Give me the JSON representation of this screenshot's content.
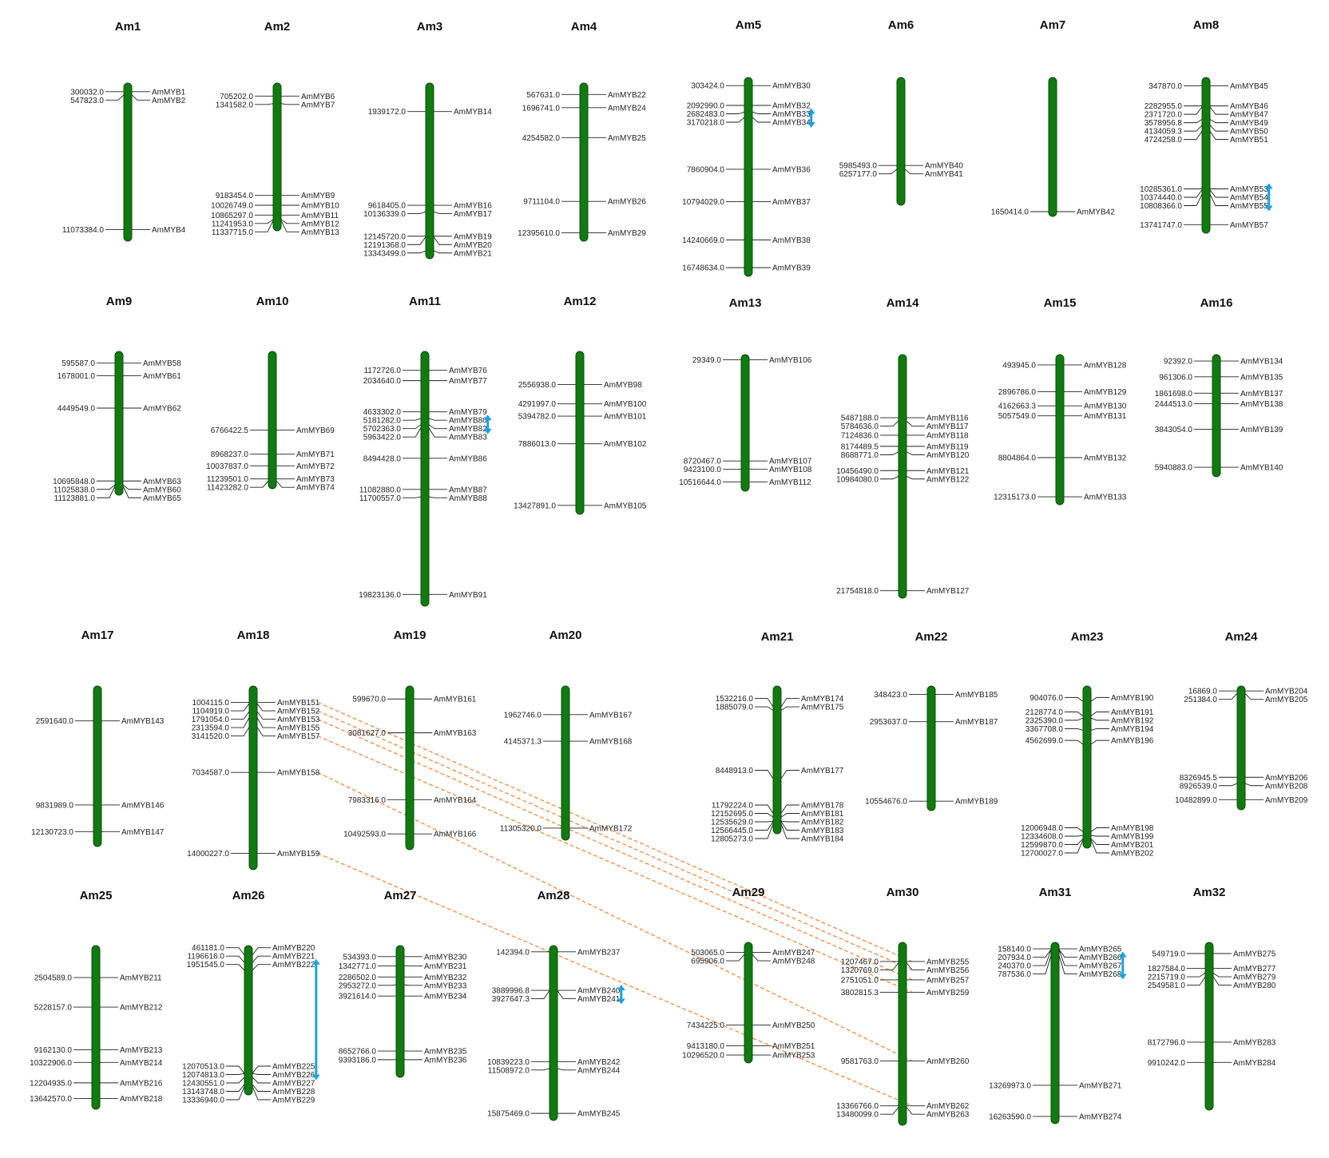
{
  "colors": {
    "chromosome": "#117a11",
    "segmental_link": "#f0883c",
    "tandem_marker": "#1aa3e0",
    "text": "#222222"
  },
  "chromosomes": [
    {
      "name": "Am1",
      "genes": [
        {
          "pos": "300032.0",
          "gene": "AmMYB1"
        },
        {
          "pos": "547823.0",
          "gene": "AmMYB2"
        },
        {
          "pos": "11073384.0",
          "gene": "AmMYB4"
        }
      ]
    },
    {
      "name": "Am2",
      "genes": [
        {
          "pos": "705202.0",
          "gene": "AmMYB6"
        },
        {
          "pos": "1341582.0",
          "gene": "AmMYB7"
        },
        {
          "pos": "9183454.0",
          "gene": "AmMYB9"
        },
        {
          "pos": "10026749.0",
          "gene": "AmMYB10"
        },
        {
          "pos": "10865297.0",
          "gene": "AmMYB11"
        },
        {
          "pos": "11241953.0",
          "gene": "AmMYB12"
        },
        {
          "pos": "11337715.0",
          "gene": "AmMYB13"
        }
      ]
    },
    {
      "name": "Am3",
      "genes": [
        {
          "pos": "1939172.0",
          "gene": "AmMYB14"
        },
        {
          "pos": "9618405.0",
          "gene": "AmMYB16"
        },
        {
          "pos": "10136339.0",
          "gene": "AmMYB17"
        },
        {
          "pos": "12145720.0",
          "gene": "AmMYB19"
        },
        {
          "pos": "12191368.0",
          "gene": "AmMYB20"
        },
        {
          "pos": "13343499.0",
          "gene": "AmMYB21"
        }
      ]
    },
    {
      "name": "Am4",
      "genes": [
        {
          "pos": "567631.0",
          "gene": "AmMYB22"
        },
        {
          "pos": "1696741.0",
          "gene": "AmMYB24"
        },
        {
          "pos": "4254582.0",
          "gene": "AmMYB25"
        },
        {
          "pos": "9711104.0",
          "gene": "AmMYB26"
        },
        {
          "pos": "12395610.0",
          "gene": "AmMYB29"
        }
      ]
    },
    {
      "name": "Am5",
      "genes": [
        {
          "pos": "303424.0",
          "gene": "AmMYB30"
        },
        {
          "pos": "2092990.0",
          "gene": "AmMYB32"
        },
        {
          "pos": "2682483.0",
          "gene": "AmMYB33"
        },
        {
          "pos": "3170218.0",
          "gene": "AmMYB34"
        },
        {
          "pos": "7860904.0",
          "gene": "AmMYB36"
        },
        {
          "pos": "10794029.0",
          "gene": "AmMYB37"
        },
        {
          "pos": "14240669.0",
          "gene": "AmMYB38"
        },
        {
          "pos": "16748634.0",
          "gene": "AmMYB39"
        }
      ]
    },
    {
      "name": "Am6",
      "genes": [
        {
          "pos": "5985493.0",
          "gene": "AmMYB40"
        },
        {
          "pos": "6257177.0",
          "gene": "AmMYB41"
        }
      ]
    },
    {
      "name": "Am7",
      "genes": [
        {
          "pos": "1650414.0",
          "gene": "AmMYB42"
        }
      ]
    },
    {
      "name": "Am8",
      "genes": [
        {
          "pos": "347870.0",
          "gene": "AmMYB45"
        },
        {
          "pos": "2282955.0",
          "gene": "AmMYB46"
        },
        {
          "pos": "2371720.0",
          "gene": "AmMYB47"
        },
        {
          "pos": "3578956.8",
          "gene": "AmMYB49"
        },
        {
          "pos": "4134059.3",
          "gene": "AmMYB50"
        },
        {
          "pos": "4724258.0",
          "gene": "AmMYB51"
        },
        {
          "pos": "10285361.0",
          "gene": "AmMYB53"
        },
        {
          "pos": "10374440.0",
          "gene": "AmMYB54"
        },
        {
          "pos": "10808366.0",
          "gene": "AmMYB55"
        },
        {
          "pos": "13741747.0",
          "gene": "AmMYB57"
        }
      ]
    },
    {
      "name": "Am9",
      "genes": [
        {
          "pos": "595587.0",
          "gene": "AmMYB58"
        },
        {
          "pos": "1678001.0",
          "gene": "AmMYB61"
        },
        {
          "pos": "4449549.0",
          "gene": "AmMYB62"
        },
        {
          "pos": "10695848.0",
          "gene": "AmMYB63"
        },
        {
          "pos": "11025838.0",
          "gene": "AmMYB60"
        },
        {
          "pos": "11123881.0",
          "gene": "AmMYB65"
        }
      ]
    },
    {
      "name": "Am10",
      "genes": [
        {
          "pos": "6766422.5",
          "gene": "AmMYB69"
        },
        {
          "pos": "8968237.0",
          "gene": "AmMYB71"
        },
        {
          "pos": "10037837.0",
          "gene": "AmMYB72"
        },
        {
          "pos": "11239501.0",
          "gene": "AmMYB73"
        },
        {
          "pos": "11423282.0",
          "gene": "AmMYB74"
        }
      ]
    },
    {
      "name": "Am11",
      "genes": [
        {
          "pos": "1172726.0",
          "gene": "AmMYB76"
        },
        {
          "pos": "2034640.0",
          "gene": "AmMYB77"
        },
        {
          "pos": "4633302.0",
          "gene": "AmMYB79"
        },
        {
          "pos": "5181282.0",
          "gene": "AmMYB80"
        },
        {
          "pos": "5702363.0",
          "gene": "AmMYB82"
        },
        {
          "pos": "5963422.0",
          "gene": "AmMYB83"
        },
        {
          "pos": "8494428.0",
          "gene": "AmMYB86"
        },
        {
          "pos": "11082880.0",
          "gene": "AmMYB87"
        },
        {
          "pos": "11700557.0",
          "gene": "AmMYB88"
        },
        {
          "pos": "19823136.0",
          "gene": "AmMYB91"
        }
      ]
    },
    {
      "name": "Am12",
      "genes": [
        {
          "pos": "2556938.0",
          "gene": "AmMYB98"
        },
        {
          "pos": "4291997.0",
          "gene": "AmMYB100"
        },
        {
          "pos": "5394782.0",
          "gene": "AmMYB101"
        },
        {
          "pos": "7886013.0",
          "gene": "AmMYB102"
        },
        {
          "pos": "13427891.0",
          "gene": "AmMYB105"
        }
      ]
    },
    {
      "name": "Am13",
      "genes": [
        {
          "pos": "29349.0",
          "gene": "AmMYB106"
        },
        {
          "pos": "8720467.0",
          "gene": "AmMYB107"
        },
        {
          "pos": "9423100.0",
          "gene": "AmMYB108"
        },
        {
          "pos": "10516644.0",
          "gene": "AmMYB112"
        }
      ]
    },
    {
      "name": "Am14",
      "genes": [
        {
          "pos": "5487188.0",
          "gene": "AmMYB116"
        },
        {
          "pos": "5784636.0",
          "gene": "AmMYB117"
        },
        {
          "pos": "7124836.0",
          "gene": "AmMYB118"
        },
        {
          "pos": "8174489.5",
          "gene": "AmMYB119"
        },
        {
          "pos": "8688771.0",
          "gene": "AmMYB120"
        },
        {
          "pos": "10456490.0",
          "gene": "AmMYB121"
        },
        {
          "pos": "10984080.0",
          "gene": "AmMYB122"
        },
        {
          "pos": "21754818.0",
          "gene": "AmMYB127"
        }
      ]
    },
    {
      "name": "Am15",
      "genes": [
        {
          "pos": "493945.0",
          "gene": "AmMYB128"
        },
        {
          "pos": "2896786.0",
          "gene": "AmMYB129"
        },
        {
          "pos": "4162663.3",
          "gene": "AmMYB130"
        },
        {
          "pos": "5057549.0",
          "gene": "AmMYB131"
        },
        {
          "pos": "8804864.0",
          "gene": "AmMYB132"
        },
        {
          "pos": "12315173.0",
          "gene": "AmMYB133"
        }
      ]
    },
    {
      "name": "Am16",
      "genes": [
        {
          "pos": "92392.0",
          "gene": "AmMYB134"
        },
        {
          "pos": "961306.0",
          "gene": "AmMYB135"
        },
        {
          "pos": "1861698.0",
          "gene": "AmMYB137"
        },
        {
          "pos": "2444513.0",
          "gene": "AmMYB138"
        },
        {
          "pos": "3843054.0",
          "gene": "AmMYB139"
        },
        {
          "pos": "5940883.0",
          "gene": "AmMYB140"
        }
      ]
    },
    {
      "name": "Am17",
      "genes": [
        {
          "pos": "2591640.0",
          "gene": "AmMYB143"
        },
        {
          "pos": "9831989.0",
          "gene": "AmMYB146"
        },
        {
          "pos": "12130723.0",
          "gene": "AmMYB147"
        }
      ]
    },
    {
      "name": "Am18",
      "genes": [
        {
          "pos": "1004115.0",
          "gene": "AmMYB151"
        },
        {
          "pos": "1104919.0",
          "gene": "AmMYB152"
        },
        {
          "pos": "1791054.0",
          "gene": "AmMYB153"
        },
        {
          "pos": "2313594.0",
          "gene": "AmMYB155"
        },
        {
          "pos": "3141520.0",
          "gene": "AmMYB157"
        },
        {
          "pos": "7034587.0",
          "gene": "AmMYB158"
        },
        {
          "pos": "14000227.0",
          "gene": "AmMYB159"
        }
      ]
    },
    {
      "name": "Am19",
      "genes": [
        {
          "pos": "599670.0",
          "gene": "AmMYB161"
        },
        {
          "pos": "3081627.0",
          "gene": "AmMYB163"
        },
        {
          "pos": "7983316.0",
          "gene": "AmMYB164"
        },
        {
          "pos": "10492593.0",
          "gene": "AmMYB166"
        }
      ]
    },
    {
      "name": "Am20",
      "genes": [
        {
          "pos": "1962746.0",
          "gene": "AmMYB167"
        },
        {
          "pos": "4145371.3",
          "gene": "AmMYB168"
        },
        {
          "pos": "11305320.0",
          "gene": "AmMYB172"
        }
      ]
    },
    {
      "name": "Am21",
      "genes": [
        {
          "pos": "1532216.0",
          "gene": "AmMYB174"
        },
        {
          "pos": "1885079.0",
          "gene": "AmMYB175"
        },
        {
          "pos": "8448913.0",
          "gene": "AmMYB177"
        },
        {
          "pos": "11792224.0",
          "gene": "AmMYB178"
        },
        {
          "pos": "12152695.0",
          "gene": "AmMYB181"
        },
        {
          "pos": "12535629.0",
          "gene": "AmMYB182"
        },
        {
          "pos": "12566445.0",
          "gene": "AmMYB183"
        },
        {
          "pos": "12805273.0",
          "gene": "AmMYB184"
        }
      ]
    },
    {
      "name": "Am22",
      "genes": [
        {
          "pos": "348423.0",
          "gene": "AmMYB185"
        },
        {
          "pos": "2953637.0",
          "gene": "AmMYB187"
        },
        {
          "pos": "10554676.0",
          "gene": "AmMYB189"
        }
      ]
    },
    {
      "name": "Am23",
      "genes": [
        {
          "pos": "904076.0",
          "gene": "AmMYB190"
        },
        {
          "pos": "2128774.0",
          "gene": "AmMYB191"
        },
        {
          "pos": "2325390.0",
          "gene": "AmMYB192"
        },
        {
          "pos": "3367708.0",
          "gene": "AmMYB194"
        },
        {
          "pos": "4562699.0",
          "gene": "AmMYB196"
        },
        {
          "pos": "12006948.0",
          "gene": "AmMYB198"
        },
        {
          "pos": "12334608.0",
          "gene": "AmMYB199"
        },
        {
          "pos": "12599870.0",
          "gene": "AmMYB201"
        },
        {
          "pos": "12700027.0",
          "gene": "AmMYB202"
        }
      ]
    },
    {
      "name": "Am24",
      "genes": [
        {
          "pos": "16869.0",
          "gene": "AmMYB204"
        },
        {
          "pos": "251384.0",
          "gene": "AmMYB205"
        },
        {
          "pos": "8326945.5",
          "gene": "AmMYB206"
        },
        {
          "pos": "8926539.0",
          "gene": "AmMYB208"
        },
        {
          "pos": "10482899.0",
          "gene": "AmMYB209"
        }
      ]
    },
    {
      "name": "Am25",
      "genes": [
        {
          "pos": "2504589.0",
          "gene": "AmMYB211"
        },
        {
          "pos": "5228157.0",
          "gene": "AmMYB212"
        },
        {
          "pos": "9162130.0",
          "gene": "AmMYB213"
        },
        {
          "pos": "10322906.0",
          "gene": "AmMYB214"
        },
        {
          "pos": "12204935.0",
          "gene": "AmMYB216"
        },
        {
          "pos": "13642570.0",
          "gene": "AmMYB218"
        }
      ]
    },
    {
      "name": "Am26",
      "genes": [
        {
          "pos": "461181.0",
          "gene": "AmMYB220"
        },
        {
          "pos": "1196616.0",
          "gene": "AmMYB221"
        },
        {
          "pos": "1951545.0",
          "gene": "AmMYB222"
        },
        {
          "pos": "12070513.0",
          "gene": "AmMYB225"
        },
        {
          "pos": "12074813.0",
          "gene": "AmMYB226"
        },
        {
          "pos": "12430551.0",
          "gene": "AmMYB227"
        },
        {
          "pos": "13143748.0",
          "gene": "AmMYB228"
        },
        {
          "pos": "13336940.0",
          "gene": "AmMYB229"
        }
      ]
    },
    {
      "name": "Am27",
      "genes": [
        {
          "pos": "534393.0",
          "gene": "AmMYB230"
        },
        {
          "pos": "1342771.0",
          "gene": "AmMYB231"
        },
        {
          "pos": "2286502.0",
          "gene": "AmMYB232"
        },
        {
          "pos": "2953272.0",
          "gene": "AmMYB233"
        },
        {
          "pos": "3921614.0",
          "gene": "AmMYB234"
        },
        {
          "pos": "8652766.0",
          "gene": "AmMYB235"
        },
        {
          "pos": "9393186.0",
          "gene": "AmMYB236"
        }
      ]
    },
    {
      "name": "Am28",
      "genes": [
        {
          "pos": "142394.0",
          "gene": "AmMYB237"
        },
        {
          "pos": "3889996.8",
          "gene": "AmMYB240"
        },
        {
          "pos": "3927647.3",
          "gene": "AmMYB241"
        },
        {
          "pos": "10839223.0",
          "gene": "AmMYB242"
        },
        {
          "pos": "11508972.0",
          "gene": "AmMYB244"
        },
        {
          "pos": "15875469.0",
          "gene": "AmMYB245"
        }
      ]
    },
    {
      "name": "Am29",
      "genes": [
        {
          "pos": "503065.0",
          "gene": "AmMYB247"
        },
        {
          "pos": "695906.0",
          "gene": "AmMYB248"
        },
        {
          "pos": "7434225.0",
          "gene": "AmMYB250"
        },
        {
          "pos": "9413180.0",
          "gene": "AmMYB251"
        },
        {
          "pos": "10296520.0",
          "gene": "AmMYB253"
        }
      ]
    },
    {
      "name": "Am30",
      "genes": [
        {
          "pos": "1207467.0",
          "gene": "AmMYB255"
        },
        {
          "pos": "1320769.0",
          "gene": "AmMYB256"
        },
        {
          "pos": "2751051.0",
          "gene": "AmMYB257"
        },
        {
          "pos": "3802815.3",
          "gene": "AmMYB259"
        },
        {
          "pos": "9581763.0",
          "gene": "AmMYB260"
        },
        {
          "pos": "13366766.0",
          "gene": "AmMYB262"
        },
        {
          "pos": "13480099.0",
          "gene": "AmMYB263"
        }
      ]
    },
    {
      "name": "Am31",
      "genes": [
        {
          "pos": "158140.0",
          "gene": "AmMYB265"
        },
        {
          "pos": "207934.0",
          "gene": "AmMYB266"
        },
        {
          "pos": "240370.0",
          "gene": "AmMYB267"
        },
        {
          "pos": "787536.0",
          "gene": "AmMYB268"
        },
        {
          "pos": "13269973.0",
          "gene": "AmMYB271"
        },
        {
          "pos": "16263590.0",
          "gene": "AmMYB274"
        }
      ]
    },
    {
      "name": "Am32",
      "genes": [
        {
          "pos": "549719.0",
          "gene": "AmMYB275"
        },
        {
          "pos": "1827584.0",
          "gene": "AmMYB277"
        },
        {
          "pos": "2215719.0",
          "gene": "AmMYB279"
        },
        {
          "pos": "2549581.0",
          "gene": "AmMYB280"
        },
        {
          "pos": "8172796.0",
          "gene": "AmMYB283"
        },
        {
          "pos": "9910242.0",
          "gene": "AmMYB284"
        }
      ]
    }
  ],
  "segmental_duplications": [
    {
      "from": "AmMYB151",
      "to": "AmMYB255"
    },
    {
      "from": "AmMYB152",
      "to": "AmMYB256"
    },
    {
      "from": "AmMYB153",
      "to": "AmMYB257"
    },
    {
      "from": "AmMYB157",
      "to": "AmMYB259"
    },
    {
      "from": "AmMYB158",
      "to": "AmMYB260"
    },
    {
      "from": "AmMYB159",
      "to": "AmMYB262"
    }
  ],
  "tandem_duplications": [
    {
      "chromosome": "Am5",
      "from": "AmMYB33",
      "to": "AmMYB34"
    },
    {
      "chromosome": "Am8",
      "from": "AmMYB53",
      "to": "AmMYB55"
    },
    {
      "chromosome": "Am11",
      "from": "AmMYB80",
      "to": "AmMYB82"
    },
    {
      "chromosome": "Am26",
      "from": "AmMYB222",
      "to": "AmMYB226"
    },
    {
      "chromosome": "Am28",
      "from": "AmMYB240",
      "to": "AmMYB241"
    },
    {
      "chromosome": "Am31",
      "from": "AmMYB266",
      "to": "AmMYB268"
    }
  ]
}
